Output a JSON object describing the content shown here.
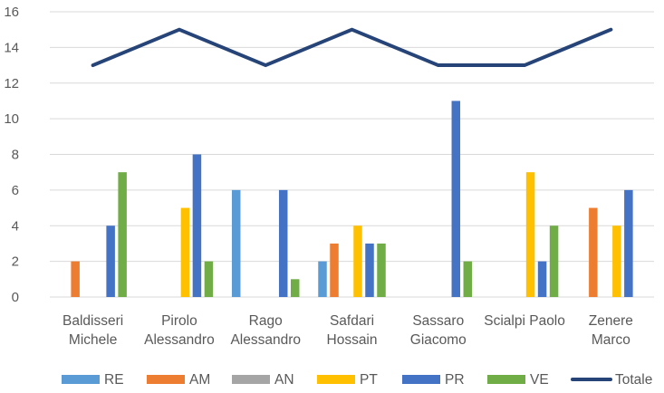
{
  "chart_data": {
    "type": "bar",
    "categories": [
      [
        "Baldisseri",
        "Michele"
      ],
      [
        "Pirolo",
        "Alessandro"
      ],
      [
        "Rago",
        "Alessandro"
      ],
      [
        "Safdari",
        "Hossain"
      ],
      [
        "Sassaro",
        "Giacomo"
      ],
      [
        "Scialpi Paolo"
      ],
      [
        "Zenere",
        "Marco"
      ]
    ],
    "ylim": [
      0,
      16
    ],
    "yticks": [
      0,
      2,
      4,
      6,
      8,
      10,
      12,
      14,
      16
    ],
    "grid": true,
    "legend_position": "bottom",
    "series": [
      {
        "name": "RE",
        "type": "bar",
        "color": "#5B9BD5",
        "values": [
          0,
          0,
          6,
          2,
          0,
          0,
          0
        ]
      },
      {
        "name": "AM",
        "type": "bar",
        "color": "#ED7D31",
        "values": [
          2,
          0,
          0,
          3,
          0,
          0,
          5
        ]
      },
      {
        "name": "AN",
        "type": "bar",
        "color": "#A5A5A5",
        "values": [
          0,
          0,
          0,
          0,
          0,
          0,
          0
        ]
      },
      {
        "name": "PT",
        "type": "bar",
        "color": "#FFC000",
        "values": [
          0,
          5,
          0,
          4,
          0,
          7,
          4
        ]
      },
      {
        "name": "PR",
        "type": "bar",
        "color": "#4472C4",
        "values": [
          4,
          8,
          6,
          3,
          11,
          2,
          6
        ]
      },
      {
        "name": "VE",
        "type": "bar",
        "color": "#70AD47",
        "values": [
          7,
          2,
          1,
          3,
          2,
          4,
          0
        ]
      },
      {
        "name": "Totale",
        "type": "line",
        "color": "#264478",
        "values": [
          13,
          15,
          13,
          15,
          13,
          13,
          15
        ]
      }
    ]
  }
}
